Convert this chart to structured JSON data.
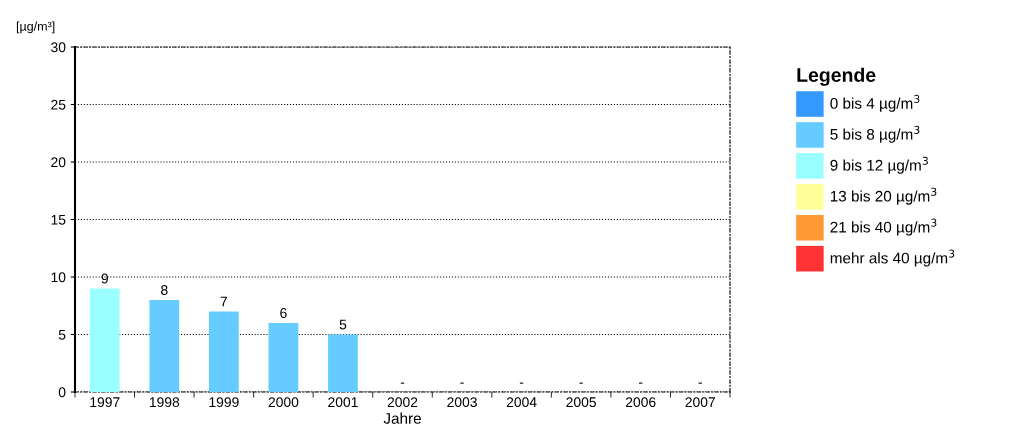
{
  "chart_data": {
    "type": "bar",
    "ylabel": "[µg/m³]",
    "xlabel": "Jahre",
    "legend_title": "Legende",
    "categories": [
      "1997",
      "1998",
      "1999",
      "2000",
      "2001",
      "2002",
      "2003",
      "2004",
      "2005",
      "2006",
      "2007"
    ],
    "series": [
      {
        "name": "0 bis 4 µg/m$^{3}$",
        "color": "#3399ff",
        "values": [
          null,
          null,
          null,
          null,
          null,
          null,
          null,
          null,
          null,
          null,
          null
        ]
      },
      {
        "name": "5 bis 8 µg/m$^{3}$",
        "color": "#66ccff",
        "values": [
          null,
          8,
          7,
          6,
          5,
          null,
          null,
          null,
          null,
          null,
          null
        ],
        "value_labels": [
          null,
          "8",
          "7",
          "6",
          "5",
          "-",
          "-",
          "-",
          "-",
          "-",
          "-"
        ]
      },
      {
        "name": "9 bis 12 µg/m$^{3}$",
        "color": "#99ffff",
        "values": [
          9,
          null,
          null,
          null,
          null,
          null,
          null,
          null,
          null,
          null,
          null
        ],
        "value_labels": [
          "9",
          null,
          null,
          null,
          null,
          null,
          null,
          null,
          null,
          null,
          null
        ]
      },
      {
        "name": "13 bis 20 µg/m$^{3}$",
        "color": "#ffff99",
        "values": [
          null,
          null,
          null,
          null,
          null,
          null,
          null,
          null,
          null,
          null,
          null
        ]
      },
      {
        "name": "21 bis 40 µg/m$^{3}$",
        "color": "#ff9933",
        "values": [
          null,
          null,
          null,
          null,
          null,
          null,
          null,
          null,
          null,
          null,
          null
        ]
      },
      {
        "name": "mehr als 40 µg/m$^{3}$",
        "color": "#ff3333",
        "values": [
          null,
          null,
          null,
          null,
          null,
          null,
          null,
          null,
          null,
          null,
          null
        ]
      }
    ],
    "ylim": [
      0,
      30
    ],
    "yticks": [
      0,
      5,
      10,
      15,
      20,
      25,
      30
    ],
    "grid": "y",
    "legend": "right"
  }
}
